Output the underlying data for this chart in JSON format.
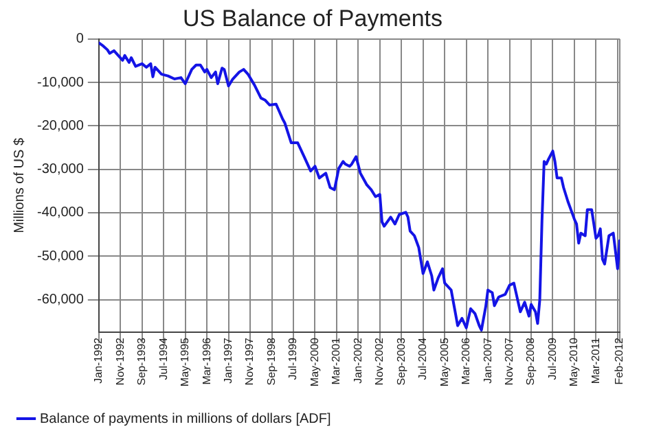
{
  "chart_data": {
    "type": "line",
    "title": "US Balance of Payments",
    "ylabel": "Millions of US $",
    "xlim": [
      "1992-01",
      "2012-02"
    ],
    "ylim": [
      -67500,
      0
    ],
    "yticks": [
      {
        "value": -60000,
        "label": "-60,000"
      },
      {
        "value": -50000,
        "label": "-50,000"
      },
      {
        "value": -40000,
        "label": "-40,000"
      },
      {
        "value": -30000,
        "label": "-30,000"
      },
      {
        "value": -20000,
        "label": "-20,000"
      },
      {
        "value": -10000,
        "label": "-10,000"
      },
      0
    ],
    "xticks": [
      {
        "value": "1992-01",
        "label": "Jan-1992"
      },
      {
        "value": "1992-11",
        "label": "Nov-1992"
      },
      {
        "value": "1993-09",
        "label": "Sep-1993"
      },
      {
        "value": "1994-07",
        "label": "Jul-1994"
      },
      {
        "value": "1995-05",
        "label": "May-1995"
      },
      {
        "value": "1996-03",
        "label": "Mar-1996"
      },
      {
        "value": "1997-01",
        "label": "Jan-1997"
      },
      {
        "value": "1997-11",
        "label": "Nov-1997"
      },
      {
        "value": "1998-09",
        "label": "Sep-1998"
      },
      {
        "value": "1999-07",
        "label": "Jul-1999"
      },
      {
        "value": "2000-05",
        "label": "May-2000"
      },
      {
        "value": "2001-03",
        "label": "Mar-2001"
      },
      {
        "value": "2002-01",
        "label": "Jan-2002"
      },
      {
        "value": "2002-11",
        "label": "Nov-2002"
      },
      {
        "value": "2003-09",
        "label": "Sep-2003"
      },
      {
        "value": "2004-07",
        "label": "Jul-2004"
      },
      {
        "value": "2005-05",
        "label": "May-2005"
      },
      {
        "value": "2006-03",
        "label": "Mar-2006"
      },
      {
        "value": "2007-01",
        "label": "Jan-2007"
      },
      {
        "value": "2007-11",
        "label": "Nov-2007"
      },
      {
        "value": "2008-09",
        "label": "Sep-2008"
      },
      {
        "value": "2009-07",
        "label": "Jul-2009"
      },
      {
        "value": "2010-05",
        "label": "May-2010"
      },
      {
        "value": "2011-03",
        "label": "Mar-2011"
      },
      {
        "value": "2012-01",
        "label": null
      },
      {
        "value": "2012-02",
        "label": "Feb-2012"
      }
    ],
    "grid": true,
    "legend": "bottom",
    "marker": "none",
    "line_style": "solid",
    "series": [
      {
        "name": "Balance of payments in millions of dollars [ADF]",
        "color": "#1414e6",
        "x": [
          "1992-01",
          "1992-03",
          "1992-05",
          "1992-06",
          "1992-08",
          "1992-10",
          "1992-12",
          "1993-01",
          "1993-03",
          "1993-04",
          "1993-06",
          "1993-09",
          "1993-11",
          "1994-01",
          "1994-02",
          "1994-03",
          "1994-06",
          "1994-09",
          "1994-12",
          "1995-03",
          "1995-05",
          "1995-06",
          "1995-08",
          "1995-10",
          "1995-12",
          "1996-02",
          "1996-03",
          "1996-05",
          "1996-07",
          "1996-08",
          "1996-10",
          "1996-11",
          "1997-01",
          "1997-03",
          "1997-06",
          "1997-08",
          "1997-10",
          "1998-01",
          "1998-04",
          "1998-06",
          "1998-08",
          "1998-11",
          "1999-02",
          "1999-03",
          "1999-06",
          "1999-09",
          "1999-12",
          "2000-03",
          "2000-05",
          "2000-07",
          "2000-10",
          "2000-12",
          "2001-02",
          "2001-04",
          "2001-06",
          "2001-07",
          "2001-09",
          "2001-10",
          "2001-12",
          "2002-02",
          "2002-05",
          "2002-07",
          "2002-09",
          "2002-11",
          "2002-12",
          "2003-01",
          "2003-04",
          "2003-06",
          "2003-08",
          "2003-11",
          "2003-12",
          "2004-01",
          "2004-03",
          "2004-05",
          "2004-07",
          "2004-09",
          "2004-11",
          "2004-12",
          "2005-02",
          "2005-04",
          "2005-05",
          "2005-08",
          "2005-10",
          "2005-11",
          "2006-01",
          "2006-03",
          "2006-05",
          "2006-07",
          "2006-09",
          "2006-10",
          "2006-12",
          "2007-01",
          "2007-03",
          "2007-04",
          "2007-06",
          "2007-09",
          "2007-11",
          "2008-01",
          "2008-02",
          "2008-03",
          "2008-04",
          "2008-06",
          "2008-08",
          "2008-09",
          "2008-11",
          "2008-12",
          "2009-01",
          "2009-02",
          "2009-03",
          "2009-04",
          "2009-05",
          "2009-07",
          "2009-08",
          "2009-09",
          "2009-11",
          "2009-12",
          "2010-02",
          "2010-04",
          "2010-05",
          "2010-06",
          "2010-07",
          "2010-08",
          "2010-10",
          "2010-11",
          "2011-01",
          "2011-03",
          "2011-04",
          "2011-05",
          "2011-06",
          "2011-07",
          "2011-09",
          "2011-11",
          "2012-01",
          "2012-02"
        ],
        "values": [
          -900,
          -1600,
          -2500,
          -3300,
          -2700,
          -3800,
          -4900,
          -3800,
          -5400,
          -4300,
          -6300,
          -5700,
          -6500,
          -5700,
          -8700,
          -6500,
          -8100,
          -8500,
          -9200,
          -8900,
          -10300,
          -9200,
          -7000,
          -6000,
          -6000,
          -7600,
          -7000,
          -8900,
          -7600,
          -10300,
          -6700,
          -7000,
          -10800,
          -9200,
          -7600,
          -7000,
          -8100,
          -10600,
          -13600,
          -14100,
          -15200,
          -15000,
          -18400,
          -19300,
          -23900,
          -23900,
          -27100,
          -30400,
          -29300,
          -32000,
          -30900,
          -34200,
          -34700,
          -29800,
          -28200,
          -28800,
          -29300,
          -28800,
          -27100,
          -30900,
          -33600,
          -34700,
          -36300,
          -35800,
          -42100,
          -43100,
          -41000,
          -42600,
          -40400,
          -39900,
          -41000,
          -44200,
          -45300,
          -48000,
          -54000,
          -51300,
          -54500,
          -57800,
          -55000,
          -52900,
          -56200,
          -57800,
          -63200,
          -66000,
          -64300,
          -66500,
          -62100,
          -63200,
          -66000,
          -67000,
          -61600,
          -57800,
          -58400,
          -61400,
          -59400,
          -58800,
          -56700,
          -56200,
          -58400,
          -60600,
          -62800,
          -60600,
          -63800,
          -61100,
          -62800,
          -65500,
          -60000,
          -42000,
          -28200,
          -28800,
          -27700,
          -25800,
          -28200,
          -32000,
          -32000,
          -34200,
          -37400,
          -40100,
          -41500,
          -42600,
          -47000,
          -44700,
          -45300,
          -39300,
          -39300,
          -45900,
          -45300,
          -43700,
          -50700,
          -51800,
          -45300,
          -44700,
          -52900,
          -46400
        ]
      }
    ]
  }
}
